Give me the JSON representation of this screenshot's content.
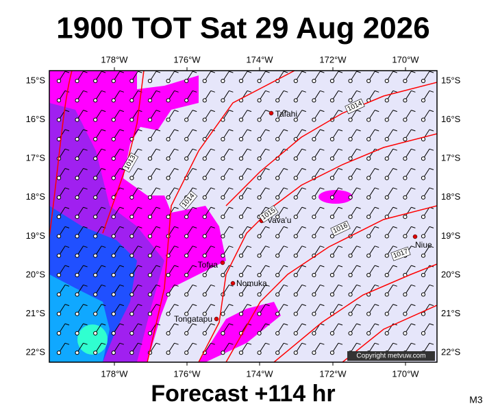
{
  "header": {
    "title": "1900 TOT Sat 29 Aug 2026"
  },
  "map": {
    "lon_labels": [
      "178°W",
      "176°W",
      "174°W",
      "172°W",
      "170°W"
    ],
    "lat_labels": [
      "15°S",
      "16°S",
      "17°S",
      "18°S",
      "19°S",
      "20°S",
      "21°S",
      "22°S"
    ],
    "places": [
      {
        "label": "Tafahi"
      },
      {
        "label": "Vava'u"
      },
      {
        "label": "Niue"
      },
      {
        "label": "Tofua"
      },
      {
        "label": "Nomuka"
      },
      {
        "label": "Tongatapu"
      }
    ],
    "isobar_labels": [
      "1014",
      "1013",
      "1014",
      "1015",
      "1016",
      "1017"
    ],
    "copyright": "Copyright metvuw.com"
  },
  "footer": {
    "forecast": "Forecast +114 hr",
    "model": "M3"
  }
}
